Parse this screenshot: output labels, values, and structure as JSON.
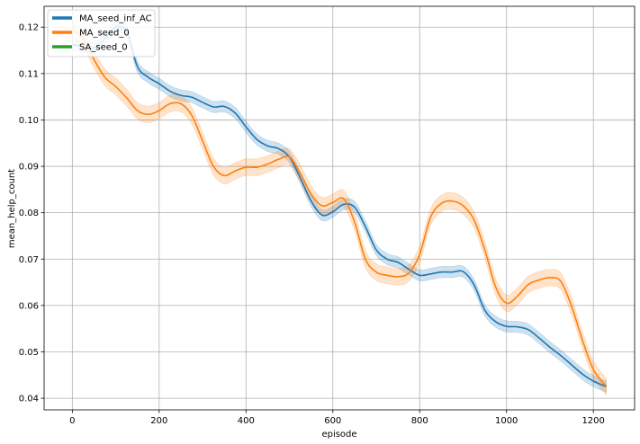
{
  "chart_data": {
    "type": "line",
    "xlabel": "episode",
    "ylabel": "mean_help_count",
    "xlim": [
      -65,
      1295
    ],
    "ylim": [
      0.0375,
      0.1245
    ],
    "x_ticks": [
      0,
      200,
      400,
      600,
      800,
      1000,
      1200
    ],
    "y_ticks": [
      0.04,
      0.05,
      0.06,
      0.07,
      0.08,
      0.09,
      0.1,
      0.11,
      0.12
    ],
    "y_tick_labels": [
      "0.04",
      "0.05",
      "0.06",
      "0.07",
      "0.08",
      "0.09",
      "0.10",
      "0.11",
      "0.12"
    ],
    "grid": true,
    "legend_position": "top-left",
    "series": [
      {
        "name": "MA_seed_inf_AC",
        "color": "#1f77b4",
        "band": 0.0012,
        "x": [
          0,
          25,
          50,
          75,
          100,
          125,
          150,
          175,
          200,
          225,
          250,
          275,
          300,
          325,
          350,
          375,
          400,
          425,
          450,
          475,
          500,
          525,
          550,
          575,
          600,
          625,
          650,
          675,
          700,
          725,
          750,
          775,
          800,
          825,
          850,
          875,
          900,
          925,
          950,
          975,
          1000,
          1025,
          1050,
          1075,
          1100,
          1125,
          1150,
          1175,
          1200,
          1230
        ],
        "values": [
          0.1163,
          0.1158,
          0.1155,
          0.1175,
          0.12,
          0.119,
          0.1115,
          0.1092,
          0.1078,
          0.1062,
          0.1053,
          0.1049,
          0.1038,
          0.1028,
          0.1029,
          0.1015,
          0.0985,
          0.0958,
          0.0944,
          0.0938,
          0.092,
          0.0875,
          0.0825,
          0.0795,
          0.0802,
          0.0818,
          0.0812,
          0.077,
          0.072,
          0.07,
          0.0693,
          0.0678,
          0.0665,
          0.0668,
          0.0672,
          0.0672,
          0.0673,
          0.0645,
          0.059,
          0.0565,
          0.0555,
          0.0554,
          0.0548,
          0.053,
          0.051,
          0.0492,
          0.0472,
          0.0452,
          0.0437,
          0.0425
        ]
      },
      {
        "name": "MA_seed_0",
        "color": "#ff7f0e",
        "band": 0.0018,
        "x": [
          0,
          25,
          50,
          75,
          100,
          125,
          150,
          175,
          200,
          225,
          250,
          275,
          300,
          325,
          350,
          375,
          400,
          425,
          450,
          475,
          500,
          525,
          550,
          575,
          600,
          625,
          650,
          675,
          700,
          725,
          750,
          775,
          800,
          825,
          850,
          875,
          900,
          925,
          950,
          975,
          1000,
          1025,
          1050,
          1075,
          1100,
          1125,
          1150,
          1175,
          1200,
          1230
        ],
        "values": [
          0.1195,
          0.1175,
          0.113,
          0.1092,
          0.1072,
          0.1048,
          0.102,
          0.1012,
          0.102,
          0.1035,
          0.1035,
          0.101,
          0.0955,
          0.09,
          0.088,
          0.089,
          0.0898,
          0.0898,
          0.0905,
          0.0915,
          0.092,
          0.0885,
          0.084,
          0.0815,
          0.0822,
          0.083,
          0.078,
          0.07,
          0.0672,
          0.0665,
          0.0662,
          0.067,
          0.071,
          0.079,
          0.082,
          0.0825,
          0.0815,
          0.0785,
          0.072,
          0.064,
          0.0605,
          0.062,
          0.0645,
          0.0655,
          0.066,
          0.0652,
          0.0598,
          0.0525,
          0.0462,
          0.0425
        ]
      },
      {
        "name": "SA_seed_0",
        "color": "#2ca02c",
        "band": 0,
        "x": [],
        "values": []
      }
    ]
  }
}
